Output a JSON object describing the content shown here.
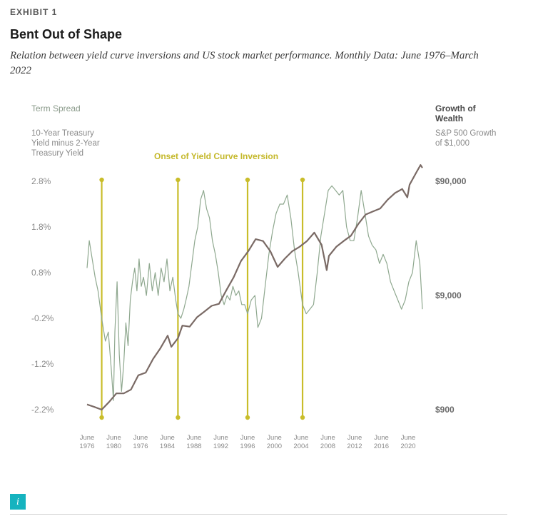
{
  "header": {
    "exhibit": "EXHIBIT 1",
    "title": "Bent Out of Shape",
    "subtitle": "Relation between yield curve inversions and US stock market performance. Monthly Data: June 1976–March 2022"
  },
  "chart_data": {
    "type": "line",
    "annotation": "Onset of Yield Curve Inversion",
    "left_axis": {
      "title": "Term Spread",
      "subtitle": "10-Year Treasury Yield minus 2-Year Treasury Yield",
      "tick_labels": [
        "2.8%",
        "1.8%",
        "0.8%",
        "-0.2%",
        "-1.2%",
        "-2.2%"
      ],
      "ticks": [
        2.8,
        1.8,
        0.8,
        -0.2,
        -1.2,
        -2.2
      ],
      "ylim": [
        -2.2,
        2.8
      ]
    },
    "right_axis": {
      "title": "Growth of Wealth",
      "subtitle": "S&P 500 Growth of $1,000",
      "tick_labels": [
        "$90,000",
        "$9,000",
        "$900"
      ],
      "ticks": [
        90000,
        9000,
        900
      ],
      "scale": "log"
    },
    "x_axis": {
      "tick_labels": [
        [
          "June",
          "1976"
        ],
        [
          "June",
          "1980"
        ],
        [
          "June",
          "1976"
        ],
        [
          "June",
          "1984"
        ],
        [
          "June",
          "1988"
        ],
        [
          "June",
          "1992"
        ],
        [
          "June",
          "1996"
        ],
        [
          "June",
          "2000"
        ],
        [
          "June",
          "2004"
        ],
        [
          "June",
          "2008"
        ],
        [
          "June",
          "2012"
        ],
        [
          "June",
          "2016"
        ],
        [
          "June",
          "2020"
        ]
      ]
    },
    "inversion_onsets": [
      1978.5,
      1988.9,
      1998.4,
      2005.9
    ],
    "series": [
      {
        "axis": "left",
        "color": "#8fa88f",
        "points": [
          [
            1976.5,
            0.9
          ],
          [
            1976.8,
            1.5
          ],
          [
            1977.2,
            1.1
          ],
          [
            1977.6,
            0.7
          ],
          [
            1978.0,
            0.4
          ],
          [
            1978.5,
            -0.2
          ],
          [
            1979.0,
            -0.7
          ],
          [
            1979.4,
            -0.5
          ],
          [
            1979.8,
            -1.3
          ],
          [
            1980.1,
            -2.0
          ],
          [
            1980.3,
            -0.5
          ],
          [
            1980.6,
            0.6
          ],
          [
            1980.9,
            -1.0
          ],
          [
            1981.2,
            -1.8
          ],
          [
            1981.5,
            -1.2
          ],
          [
            1981.8,
            -0.3
          ],
          [
            1982.1,
            -0.8
          ],
          [
            1982.4,
            0.2
          ],
          [
            1982.7,
            0.6
          ],
          [
            1983.0,
            0.9
          ],
          [
            1983.3,
            0.4
          ],
          [
            1983.6,
            1.1
          ],
          [
            1983.9,
            0.5
          ],
          [
            1984.2,
            0.7
          ],
          [
            1984.6,
            0.3
          ],
          [
            1985.0,
            1.0
          ],
          [
            1985.4,
            0.4
          ],
          [
            1985.8,
            0.8
          ],
          [
            1986.2,
            0.3
          ],
          [
            1986.6,
            0.9
          ],
          [
            1987.0,
            0.6
          ],
          [
            1987.4,
            1.1
          ],
          [
            1987.8,
            0.4
          ],
          [
            1988.2,
            0.7
          ],
          [
            1988.6,
            0.2
          ],
          [
            1988.9,
            -0.1
          ],
          [
            1989.3,
            -0.2
          ],
          [
            1989.7,
            0.0
          ],
          [
            1990.0,
            0.2
          ],
          [
            1990.4,
            0.5
          ],
          [
            1990.8,
            1.0
          ],
          [
            1991.2,
            1.5
          ],
          [
            1991.6,
            1.8
          ],
          [
            1992.0,
            2.4
          ],
          [
            1992.4,
            2.6
          ],
          [
            1992.8,
            2.2
          ],
          [
            1993.2,
            2.0
          ],
          [
            1993.6,
            1.5
          ],
          [
            1994.0,
            1.2
          ],
          [
            1994.4,
            0.8
          ],
          [
            1994.8,
            0.3
          ],
          [
            1995.2,
            0.1
          ],
          [
            1995.6,
            0.3
          ],
          [
            1996.0,
            0.2
          ],
          [
            1996.4,
            0.5
          ],
          [
            1996.8,
            0.3
          ],
          [
            1997.2,
            0.4
          ],
          [
            1997.6,
            0.1
          ],
          [
            1998.0,
            0.1
          ],
          [
            1998.4,
            -0.1
          ],
          [
            1998.9,
            0.2
          ],
          [
            1999.4,
            0.3
          ],
          [
            1999.8,
            -0.4
          ],
          [
            2000.3,
            -0.2
          ],
          [
            2000.8,
            0.5
          ],
          [
            2001.3,
            1.2
          ],
          [
            2001.8,
            1.7
          ],
          [
            2002.3,
            2.1
          ],
          [
            2002.8,
            2.3
          ],
          [
            2003.3,
            2.3
          ],
          [
            2003.8,
            2.5
          ],
          [
            2004.3,
            2.0
          ],
          [
            2004.8,
            1.3
          ],
          [
            2005.3,
            0.8
          ],
          [
            2005.9,
            0.1
          ],
          [
            2006.4,
            -0.1
          ],
          [
            2006.9,
            0.0
          ],
          [
            2007.4,
            0.1
          ],
          [
            2007.9,
            0.8
          ],
          [
            2008.4,
            1.6
          ],
          [
            2008.9,
            2.1
          ],
          [
            2009.4,
            2.6
          ],
          [
            2009.9,
            2.7
          ],
          [
            2010.4,
            2.6
          ],
          [
            2010.9,
            2.5
          ],
          [
            2011.4,
            2.6
          ],
          [
            2011.9,
            1.8
          ],
          [
            2012.4,
            1.5
          ],
          [
            2012.9,
            1.5
          ],
          [
            2013.4,
            2.0
          ],
          [
            2013.9,
            2.6
          ],
          [
            2014.4,
            2.1
          ],
          [
            2014.9,
            1.6
          ],
          [
            2015.4,
            1.4
          ],
          [
            2015.9,
            1.3
          ],
          [
            2016.4,
            1.0
          ],
          [
            2016.9,
            1.2
          ],
          [
            2017.4,
            1.0
          ],
          [
            2017.9,
            0.6
          ],
          [
            2018.4,
            0.4
          ],
          [
            2018.9,
            0.2
          ],
          [
            2019.4,
            0.0
          ],
          [
            2019.9,
            0.2
          ],
          [
            2020.4,
            0.6
          ],
          [
            2020.9,
            0.8
          ],
          [
            2021.4,
            1.5
          ],
          [
            2021.9,
            1.0
          ],
          [
            2022.25,
            0.0
          ]
        ]
      },
      {
        "axis": "right",
        "color": "#7a6a65",
        "points": [
          [
            1976.5,
            1000
          ],
          [
            1977.5,
            950
          ],
          [
            1978.5,
            900
          ],
          [
            1979.5,
            1050
          ],
          [
            1980.5,
            1250
          ],
          [
            1981.5,
            1250
          ],
          [
            1982.5,
            1350
          ],
          [
            1983.5,
            1800
          ],
          [
            1984.5,
            1900
          ],
          [
            1985.5,
            2500
          ],
          [
            1986.5,
            3100
          ],
          [
            1987.5,
            4000
          ],
          [
            1988.0,
            3200
          ],
          [
            1988.9,
            3800
          ],
          [
            1989.5,
            4900
          ],
          [
            1990.5,
            4800
          ],
          [
            1991.5,
            5800
          ],
          [
            1992.5,
            6500
          ],
          [
            1993.5,
            7300
          ],
          [
            1994.5,
            7600
          ],
          [
            1995.5,
            10000
          ],
          [
            1996.5,
            13000
          ],
          [
            1997.5,
            18000
          ],
          [
            1998.5,
            22000
          ],
          [
            1999.5,
            28000
          ],
          [
            2000.5,
            27000
          ],
          [
            2001.5,
            22000
          ],
          [
            2002.5,
            16000
          ],
          [
            2003.5,
            19000
          ],
          [
            2004.5,
            22000
          ],
          [
            2005.5,
            24000
          ],
          [
            2006.5,
            27000
          ],
          [
            2007.5,
            32000
          ],
          [
            2008.5,
            25000
          ],
          [
            2009.2,
            15000
          ],
          [
            2009.5,
            20000
          ],
          [
            2010.5,
            24000
          ],
          [
            2011.5,
            27000
          ],
          [
            2012.5,
            30000
          ],
          [
            2013.5,
            38000
          ],
          [
            2014.5,
            46000
          ],
          [
            2015.5,
            49000
          ],
          [
            2016.5,
            52000
          ],
          [
            2017.5,
            62000
          ],
          [
            2018.5,
            71000
          ],
          [
            2019.5,
            77000
          ],
          [
            2020.2,
            65000
          ],
          [
            2020.5,
            84000
          ],
          [
            2021.5,
            110000
          ],
          [
            2022.0,
            125000
          ],
          [
            2022.25,
            118000
          ]
        ]
      }
    ]
  },
  "footer": {
    "info_label": "i"
  }
}
